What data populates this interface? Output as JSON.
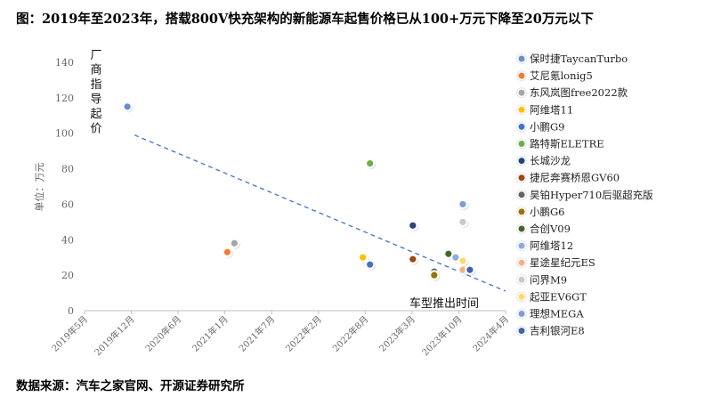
{
  "title": "图：2019年至2023年，搭载800V快充架构的新能源车起售价格已从100+万元下降至20万元以下",
  "source": "数据来源：汽车之家官网、开源证券研究所",
  "chart_data": {
    "type": "scatter",
    "ylabel": "单位：万元",
    "y_annotation": "厂商指导起价",
    "x_annotation": "车型推出时间",
    "ylim": [
      0,
      140
    ],
    "yticks": [
      0,
      20,
      40,
      60,
      80,
      100,
      120,
      140
    ],
    "xlim": [
      "2019-05",
      "2024-04"
    ],
    "xticks": [
      "2019年5月",
      "2019年12月",
      "2020年6月",
      "2021年1月",
      "2021年7月",
      "2022年2月",
      "2022年8月",
      "2023年3月",
      "2023年10月",
      "2024年4月"
    ],
    "trendline": {
      "style": "dashed",
      "color": "#4472C4",
      "x": [
        "2019-12",
        "2024-04"
      ],
      "y": [
        99,
        11
      ]
    },
    "legend_position": "right",
    "series": [
      {
        "name": "保时捷TaycanTurbo",
        "color": "#6A8FD0",
        "points": [
          {
            "x": "2019-11",
            "y": 115
          }
        ]
      },
      {
        "name": "艾尼氪lonig5",
        "color": "#ED7D31",
        "points": [
          {
            "x": "2021-01",
            "y": 33
          }
        ]
      },
      {
        "name": "东风岚图free2022款",
        "color": "#A5A5A5",
        "points": [
          {
            "x": "2021-02",
            "y": 38
          }
        ]
      },
      {
        "name": "阿维塔11",
        "color": "#FFC000",
        "points": [
          {
            "x": "2022-08",
            "y": 30
          }
        ]
      },
      {
        "name": "小鹏G9",
        "color": "#4472C4",
        "points": [
          {
            "x": "2022-09",
            "y": 26
          }
        ]
      },
      {
        "name": "路特斯ELETRE",
        "color": "#70AD47",
        "points": [
          {
            "x": "2022-09",
            "y": 83
          }
        ]
      },
      {
        "name": "长城沙龙",
        "color": "#264478",
        "points": [
          {
            "x": "2023-03",
            "y": 48
          }
        ]
      },
      {
        "name": "捷尼奔赛桥恩GV60",
        "color": "#9E480E",
        "points": [
          {
            "x": "2023-03",
            "y": 29
          }
        ]
      },
      {
        "name": "昊铂Hyper710后驱超充版",
        "color": "#636363",
        "points": [
          {
            "x": "2023-06",
            "y": 22
          }
        ]
      },
      {
        "name": "小鹏G6",
        "color": "#997300",
        "points": [
          {
            "x": "2023-06",
            "y": 20
          }
        ]
      },
      {
        "name": "合创V09",
        "color": "#43682B",
        "points": [
          {
            "x": "2023-08",
            "y": 32
          }
        ]
      },
      {
        "name": "阿维塔12",
        "color": "#8FAADC",
        "points": [
          {
            "x": "2023-09",
            "y": 30
          }
        ]
      },
      {
        "name": "星途星纪元ES",
        "color": "#F4B183",
        "points": [
          {
            "x": "2023-10",
            "y": 23
          }
        ]
      },
      {
        "name": "问界M9",
        "color": "#C9C9C9",
        "points": [
          {
            "x": "2023-10",
            "y": 50
          }
        ]
      },
      {
        "name": "起亚EV6GT",
        "color": "#FFD966",
        "points": [
          {
            "x": "2023-10",
            "y": 28
          }
        ]
      },
      {
        "name": "理想MEGA",
        "color": "#7E9CD8",
        "points": [
          {
            "x": "2023-10",
            "y": 60
          }
        ]
      },
      {
        "name": "吉利银河E8",
        "color": "#3F64A8",
        "points": [
          {
            "x": "2023-11",
            "y": 23
          }
        ]
      }
    ]
  }
}
